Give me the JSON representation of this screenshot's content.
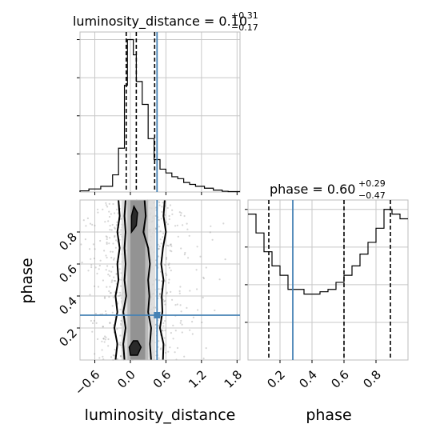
{
  "chart_data": {
    "type": "corner",
    "parameters": [
      "luminosity_distance",
      "phase"
    ],
    "truth": {
      "luminosity_distance": 0.45,
      "phase": 0.28
    },
    "truth_color": "#4682b4",
    "grid": true,
    "marginals": [
      {
        "parameter": "luminosity_distance",
        "title": {
          "prefix": "luminosity_distance = 0.10",
          "plus": "+0.31",
          "minus": "−0.17"
        },
        "quantiles": [
          -0.07,
          0.1,
          0.41
        ],
        "xlim": [
          -0.85,
          1.85
        ],
        "bin_edges": [
          -0.85,
          -0.7,
          -0.5,
          -0.3,
          -0.2,
          -0.1,
          -0.05,
          0.0,
          0.05,
          0.1,
          0.2,
          0.3,
          0.4,
          0.5,
          0.6,
          0.7,
          0.8,
          0.9,
          1.0,
          1.1,
          1.25,
          1.4,
          1.55,
          1.65,
          1.85
        ],
        "counts": [
          0.3,
          0.8,
          1.5,
          4.5,
          11.5,
          28,
          40,
          40,
          36,
          29,
          23,
          14,
          8.5,
          6,
          5,
          4,
          3.5,
          2.5,
          2,
          1.5,
          1,
          0.5,
          0.2,
          0.1
        ],
        "ylim": [
          0,
          42
        ]
      },
      {
        "parameter": "phase",
        "title": {
          "prefix": "phase = 0.60",
          "plus": "+0.29",
          "minus": "−0.47"
        },
        "quantiles": [
          0.13,
          0.6,
          0.89
        ],
        "xlim": [
          0.0,
          1.0
        ],
        "bin_edges": [
          0.0,
          0.05,
          0.1,
          0.15,
          0.2,
          0.25,
          0.3,
          0.35,
          0.4,
          0.45,
          0.5,
          0.55,
          0.6,
          0.65,
          0.7,
          0.75,
          0.8,
          0.85,
          0.9,
          0.95,
          1.0
        ],
        "counts": [
          31,
          27,
          23,
          20,
          18,
          15,
          15,
          14,
          14,
          14.5,
          15,
          16.5,
          18,
          20,
          22.5,
          25,
          28,
          32,
          31,
          30
        ],
        "ylim": [
          0,
          34
        ]
      }
    ],
    "joint": {
      "x": "luminosity_distance",
      "y": "phase",
      "xlim": [
        -0.85,
        1.85
      ],
      "ylim": [
        0.0,
        1.0
      ],
      "xticks": [
        "−0.6",
        "0.0",
        "0.6",
        "1.2",
        "1.8"
      ],
      "xtick_values": [
        -0.6,
        0.0,
        0.6,
        1.2,
        1.8
      ],
      "yticks": [
        "0.2",
        "0.4",
        "0.6",
        "0.8"
      ],
      "ytick_values": [
        0.2,
        0.4,
        0.6,
        0.8
      ],
      "contour_bands": [
        {
          "x0": -0.15,
          "x1": 0.42,
          "shade": "#d8d8d8"
        },
        {
          "x0": -0.05,
          "x1": 0.3,
          "shade": "#b4b4b4"
        },
        {
          "x0": 0.0,
          "x1": 0.25,
          "shade": "#8c8c8c"
        }
      ],
      "contour_lines": [
        {
          "name": "outer",
          "left": [
            [
              -0.25,
              0.0
            ],
            [
              -0.22,
              0.1
            ],
            [
              -0.27,
              0.2
            ],
            [
              -0.22,
              0.3
            ],
            [
              -0.25,
              0.4
            ],
            [
              -0.2,
              0.5
            ],
            [
              -0.22,
              0.6
            ],
            [
              -0.18,
              0.7
            ],
            [
              -0.22,
              0.8
            ],
            [
              -0.18,
              0.9
            ],
            [
              -0.2,
              1.0
            ]
          ],
          "right": [
            [
              0.55,
              0.0
            ],
            [
              0.56,
              0.1
            ],
            [
              0.5,
              0.2
            ],
            [
              0.54,
              0.3
            ],
            [
              0.53,
              0.4
            ],
            [
              0.56,
              0.5
            ],
            [
              0.52,
              0.6
            ],
            [
              0.55,
              0.7
            ],
            [
              0.6,
              0.8
            ],
            [
              0.56,
              0.9
            ],
            [
              0.58,
              1.0
            ]
          ]
        },
        {
          "name": "middle",
          "left": [
            [
              -0.1,
              0.0
            ],
            [
              -0.12,
              0.1
            ],
            [
              -0.08,
              0.2
            ],
            [
              -0.12,
              0.3
            ],
            [
              -0.07,
              0.4
            ],
            [
              -0.1,
              0.5
            ],
            [
              -0.08,
              0.6
            ],
            [
              -0.1,
              0.7
            ],
            [
              -0.08,
              0.8
            ],
            [
              -0.1,
              0.9
            ],
            [
              -0.08,
              1.0
            ]
          ],
          "right": [
            [
              0.35,
              0.0
            ],
            [
              0.33,
              0.1
            ],
            [
              0.35,
              0.2
            ],
            [
              0.3,
              0.3
            ],
            [
              0.32,
              0.4
            ],
            [
              0.3,
              0.5
            ],
            [
              0.33,
              0.6
            ],
            [
              0.3,
              0.7
            ],
            [
              0.22,
              0.8
            ],
            [
              0.26,
              0.9
            ],
            [
              0.24,
              1.0
            ]
          ]
        }
      ],
      "inner_blobs": [
        [
          [
            0.0,
            0.03
          ],
          [
            0.12,
            0.03
          ],
          [
            0.18,
            0.08
          ],
          [
            0.12,
            0.12
          ],
          [
            0.05,
            0.12
          ],
          [
            -0.02,
            0.08
          ]
        ],
        [
          [
            0.02,
            0.8
          ],
          [
            0.1,
            0.84
          ],
          [
            0.12,
            0.92
          ],
          [
            0.06,
            0.96
          ],
          [
            0.02,
            0.9
          ]
        ]
      ]
    },
    "xlabels": [
      "luminosity_distance",
      "phase"
    ],
    "ylabel": "phase",
    "phase_xticks": [
      "0.2",
      "0.4",
      "0.6",
      "0.8"
    ],
    "phase_xtick_values": [
      0.2,
      0.4,
      0.6,
      0.8
    ]
  }
}
